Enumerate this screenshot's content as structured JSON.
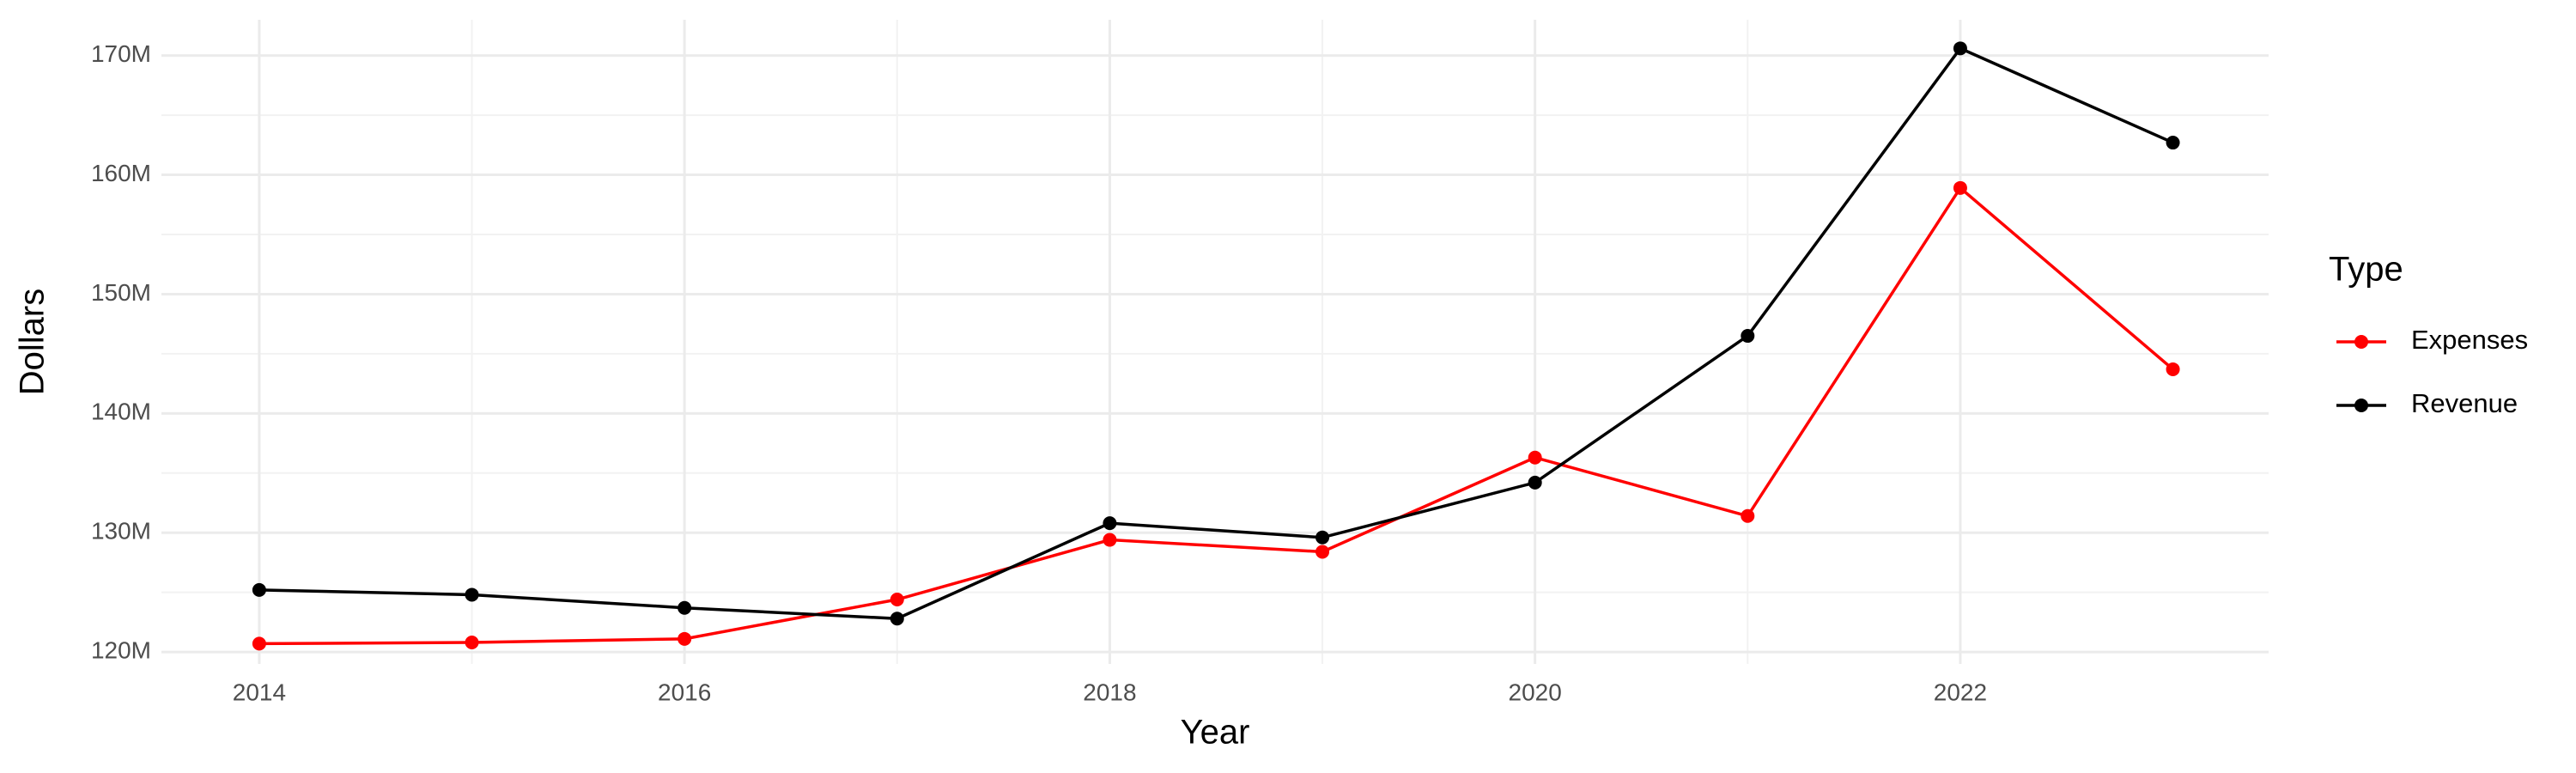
{
  "chart_data": {
    "type": "line",
    "x_label": "Year",
    "y_label": "Dollars",
    "legend_title": "Type",
    "x": [
      2014,
      2015,
      2016,
      2017,
      2018,
      2019,
      2020,
      2021,
      2022,
      2023
    ],
    "series": [
      {
        "name": "Expenses",
        "color": "#ff0000",
        "values": [
          120700000,
          120800000,
          121100000,
          124400000,
          129400000,
          128400000,
          136300000,
          131400000,
          158900000,
          143700000
        ]
      },
      {
        "name": "Revenue",
        "color": "#000000",
        "values": [
          125200000,
          124800000,
          123700000,
          122800000,
          130800000,
          129600000,
          134200000,
          146500000,
          170600000,
          162700000
        ]
      }
    ],
    "xlim": [
      2013.54,
      2023.45
    ],
    "xticks": [
      2014,
      2016,
      2018,
      2020,
      2022
    ],
    "ylim": [
      119000000,
      173000000
    ],
    "yticks": [
      {
        "value": 120000000,
        "label": "120M"
      },
      {
        "value": 130000000,
        "label": "130M"
      },
      {
        "value": 140000000,
        "label": "140M"
      },
      {
        "value": 150000000,
        "label": "150M"
      },
      {
        "value": 160000000,
        "label": "160M"
      },
      {
        "value": 170000000,
        "label": "170M"
      }
    ],
    "grid": true,
    "legend_position": "right"
  }
}
